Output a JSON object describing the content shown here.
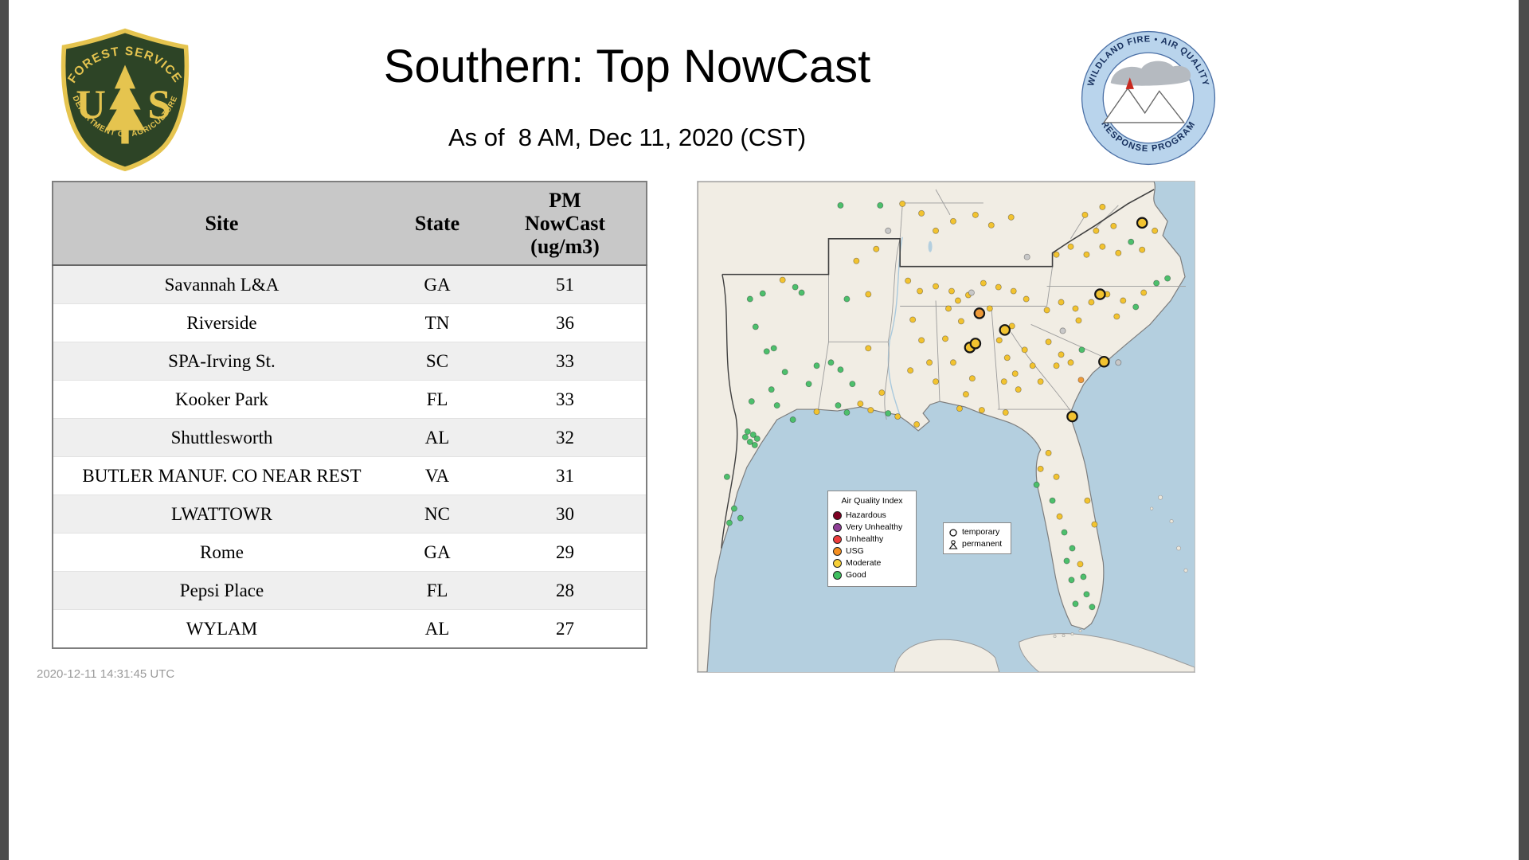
{
  "page": {
    "title": "Southern: Top NowCast",
    "subtitle": "As of  8 AM, Dec 11, 2020 (CST)",
    "footer_timestamp": "2020-12-11 14:31:45 UTC"
  },
  "logos": {
    "forest_service": {
      "arc_top": "FOREST SERVICE",
      "monogram_left": "U",
      "monogram_right": "S",
      "arc_bottom": "DEPARTMENT OF AGRICULTURE"
    },
    "airfire": {
      "arc_top": "WILDLAND FIRE • AIR QUALITY",
      "arc_bottom": "RESPONSE PROGRAM"
    }
  },
  "table": {
    "header": {
      "site": "Site",
      "state": "State",
      "pm": "PM\nNowCast\n(ug/m3)"
    },
    "rows": [
      {
        "site": "Savannah L&A",
        "state": "GA",
        "pm": "51"
      },
      {
        "site": "Riverside",
        "state": "TN",
        "pm": "36"
      },
      {
        "site": "SPA-Irving St.",
        "state": "SC",
        "pm": "33"
      },
      {
        "site": "Kooker Park",
        "state": "FL",
        "pm": "33"
      },
      {
        "site": "Shuttlesworth",
        "state": "AL",
        "pm": "32"
      },
      {
        "site": "BUTLER MANUF. CO NEAR REST",
        "state": "VA",
        "pm": "31"
      },
      {
        "site": "LWATTOWR",
        "state": "NC",
        "pm": "30"
      },
      {
        "site": "Rome",
        "state": "GA",
        "pm": "29"
      },
      {
        "site": "Pepsi Place",
        "state": "FL",
        "pm": "28"
      },
      {
        "site": "WYLAM",
        "state": "AL",
        "pm": "27"
      }
    ]
  },
  "map": {
    "colors": {
      "g": "#4dbf6c",
      "m": "#f2c330",
      "u": "#ee9a38",
      "x": "#c8c8c8"
    },
    "ring_color": "#151515",
    "legend_aqi": {
      "title": "Air Quality Index",
      "items": [
        {
          "label": "Hazardous",
          "color": "#7e0023"
        },
        {
          "label": "Very Unhealthy",
          "color": "#8f3f97"
        },
        {
          "label": "Unhealthy",
          "color": "#ed3c3c"
        },
        {
          "label": "USG",
          "color": "#f58f20"
        },
        {
          "label": "Moderate",
          "color": "#f7d038"
        },
        {
          "label": "Good",
          "color": "#3fbf5f"
        }
      ]
    },
    "legend_symbols": {
      "temporary": "temporary",
      "permanent": "permanent"
    },
    "points": [
      [
        66,
        148,
        "g"
      ],
      [
        82,
        141,
        "g"
      ],
      [
        123,
        133,
        "g"
      ],
      [
        131,
        140,
        "g"
      ],
      [
        107,
        124,
        "m"
      ],
      [
        73,
        183,
        "g"
      ],
      [
        87,
        214,
        "g"
      ],
      [
        96,
        210,
        "g"
      ],
      [
        110,
        240,
        "g"
      ],
      [
        93,
        262,
        "g"
      ],
      [
        68,
        277,
        "g"
      ],
      [
        100,
        282,
        "g"
      ],
      [
        63,
        315,
        "g"
      ],
      [
        70,
        319,
        "g"
      ],
      [
        75,
        324,
        "g"
      ],
      [
        66,
        328,
        "g"
      ],
      [
        72,
        332,
        "g"
      ],
      [
        60,
        322,
        "g"
      ],
      [
        37,
        372,
        "g"
      ],
      [
        46,
        412,
        "g"
      ],
      [
        54,
        424,
        "g"
      ],
      [
        40,
        430,
        "g"
      ],
      [
        140,
        255,
        "g"
      ],
      [
        150,
        232,
        "g"
      ],
      [
        168,
        228,
        "g"
      ],
      [
        180,
        237,
        "g"
      ],
      [
        177,
        282,
        "g"
      ],
      [
        188,
        291,
        "g"
      ],
      [
        120,
        300,
        "g"
      ],
      [
        150,
        290,
        "m"
      ],
      [
        205,
        280,
        "m"
      ],
      [
        218,
        288,
        "m"
      ],
      [
        240,
        292,
        "g"
      ],
      [
        252,
        296,
        "m"
      ],
      [
        276,
        306,
        "m"
      ],
      [
        232,
        266,
        "m"
      ],
      [
        195,
        255,
        "g"
      ],
      [
        215,
        210,
        "m"
      ],
      [
        200,
        100,
        "m"
      ],
      [
        215,
        142,
        "m"
      ],
      [
        225,
        85,
        "m"
      ],
      [
        188,
        148,
        "g"
      ],
      [
        271,
        174,
        "m"
      ],
      [
        282,
        200,
        "m"
      ],
      [
        292,
        228,
        "m"
      ],
      [
        300,
        252,
        "m"
      ],
      [
        268,
        238,
        "m"
      ],
      [
        312,
        198,
        "m"
      ],
      [
        322,
        228,
        "m"
      ],
      [
        332,
        176,
        "m"
      ],
      [
        338,
        268,
        "m"
      ],
      [
        346,
        248,
        "m"
      ],
      [
        316,
        160,
        "m"
      ],
      [
        328,
        150,
        "m"
      ],
      [
        280,
        138,
        "m"
      ],
      [
        300,
        132,
        "m"
      ],
      [
        320,
        138,
        "m"
      ],
      [
        341,
        143,
        "m"
      ],
      [
        360,
        128,
        "m"
      ],
      [
        379,
        133,
        "m"
      ],
      [
        398,
        138,
        "m"
      ],
      [
        414,
        148,
        "m"
      ],
      [
        265,
        125,
        "m"
      ],
      [
        300,
        62,
        "m"
      ],
      [
        322,
        50,
        "m"
      ],
      [
        282,
        40,
        "m"
      ],
      [
        350,
        42,
        "m"
      ],
      [
        258,
        28,
        "m"
      ],
      [
        230,
        30,
        "g"
      ],
      [
        370,
        55,
        "m"
      ],
      [
        395,
        45,
        "m"
      ],
      [
        180,
        30,
        "g"
      ],
      [
        380,
        200,
        "m"
      ],
      [
        390,
        222,
        "m"
      ],
      [
        400,
        242,
        "m"
      ],
      [
        396,
        182,
        "m"
      ],
      [
        412,
        212,
        "m"
      ],
      [
        422,
        232,
        "m"
      ],
      [
        404,
        262,
        "m"
      ],
      [
        386,
        252,
        "m"
      ],
      [
        368,
        160,
        "m"
      ],
      [
        432,
        252,
        "m"
      ],
      [
        442,
        202,
        "m"
      ],
      [
        458,
        218,
        "m"
      ],
      [
        470,
        228,
        "m"
      ],
      [
        484,
        212,
        "g"
      ],
      [
        452,
        232,
        "m"
      ],
      [
        440,
        162,
        "m"
      ],
      [
        458,
        152,
        "m"
      ],
      [
        476,
        160,
        "m"
      ],
      [
        496,
        152,
        "m"
      ],
      [
        516,
        142,
        "m"
      ],
      [
        536,
        150,
        "m"
      ],
      [
        528,
        170,
        "m"
      ],
      [
        552,
        158,
        "g"
      ],
      [
        562,
        140,
        "m"
      ],
      [
        578,
        128,
        "g"
      ],
      [
        592,
        122,
        "g"
      ],
      [
        480,
        175,
        "m"
      ],
      [
        452,
        92,
        "m"
      ],
      [
        470,
        82,
        "m"
      ],
      [
        490,
        92,
        "m"
      ],
      [
        510,
        82,
        "m"
      ],
      [
        530,
        90,
        "m"
      ],
      [
        546,
        76,
        "g"
      ],
      [
        560,
        86,
        "m"
      ],
      [
        576,
        62,
        "m"
      ],
      [
        502,
        62,
        "m"
      ],
      [
        524,
        56,
        "m"
      ],
      [
        488,
        42,
        "m"
      ],
      [
        510,
        32,
        "m"
      ],
      [
        330,
        286,
        "m"
      ],
      [
        358,
        288,
        "m"
      ],
      [
        388,
        291,
        "m"
      ],
      [
        442,
        342,
        "m"
      ],
      [
        452,
        372,
        "m"
      ],
      [
        447,
        402,
        "g"
      ],
      [
        456,
        422,
        "m"
      ],
      [
        462,
        442,
        "g"
      ],
      [
        472,
        462,
        "g"
      ],
      [
        482,
        482,
        "m"
      ],
      [
        471,
        502,
        "g"
      ],
      [
        490,
        520,
        "g"
      ],
      [
        497,
        536,
        "g"
      ],
      [
        476,
        532,
        "g"
      ],
      [
        432,
        362,
        "m"
      ],
      [
        427,
        382,
        "g"
      ],
      [
        500,
        432,
        "m"
      ],
      [
        491,
        402,
        "m"
      ],
      [
        465,
        478,
        "g"
      ],
      [
        486,
        498,
        "g"
      ],
      [
        483,
        250,
        "u"
      ],
      [
        345,
        140,
        "x"
      ],
      [
        460,
        188,
        "x"
      ],
      [
        240,
        62,
        "x"
      ],
      [
        530,
        228,
        "x"
      ],
      [
        415,
        95,
        "x"
      ]
    ],
    "temp_points": [
      [
        560,
        52,
        "m"
      ],
      [
        507,
        142,
        "m"
      ],
      [
        512,
        227,
        "m"
      ],
      [
        472,
        296,
        "m"
      ],
      [
        387,
        187,
        "m"
      ],
      [
        343,
        209,
        "m"
      ],
      [
        350,
        204,
        "m"
      ],
      [
        355,
        166,
        "u"
      ]
    ]
  },
  "chart_data": {
    "type": "table",
    "title": "Southern: Top NowCast",
    "subtitle": "As of 8 AM, Dec 11, 2020 (CST)",
    "columns": [
      "Site",
      "State",
      "PM NowCast (ug/m3)"
    ],
    "rows": [
      [
        "Savannah L&A",
        "GA",
        51
      ],
      [
        "Riverside",
        "TN",
        36
      ],
      [
        "SPA-Irving St.",
        "SC",
        33
      ],
      [
        "Kooker Park",
        "FL",
        33
      ],
      [
        "Shuttlesworth",
        "AL",
        32
      ],
      [
        "BUTLER MANUF. CO NEAR REST",
        "VA",
        31
      ],
      [
        "LWATTOWR",
        "NC",
        30
      ],
      [
        "Rome",
        "GA",
        29
      ],
      [
        "Pepsi Place",
        "FL",
        28
      ],
      [
        "WYLAM",
        "AL",
        27
      ]
    ]
  }
}
